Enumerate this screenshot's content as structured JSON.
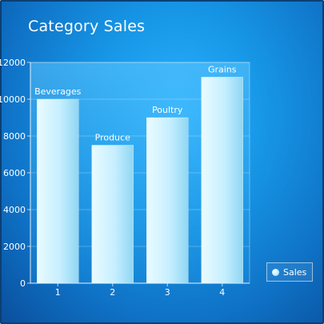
{
  "chart_data": {
    "type": "bar",
    "title": "Category Sales",
    "categories": [
      "1",
      "2",
      "3",
      "4"
    ],
    "series": [
      {
        "name": "Sales",
        "values": [
          10000,
          7500,
          9000,
          11200
        ],
        "labels": [
          "Beverages",
          "Produce",
          "Poultry",
          "Grains"
        ]
      }
    ],
    "ylim": [
      0,
      12000
    ],
    "yticks": [
      "0",
      "2000",
      "4000",
      "6000",
      "8000",
      "10000",
      "12000"
    ],
    "grid": true,
    "legend_position": "bottom-right"
  },
  "colors": {
    "background": "#1796e6",
    "bar_fill": "#c6efff",
    "plot_area": "#3fb3f5"
  }
}
